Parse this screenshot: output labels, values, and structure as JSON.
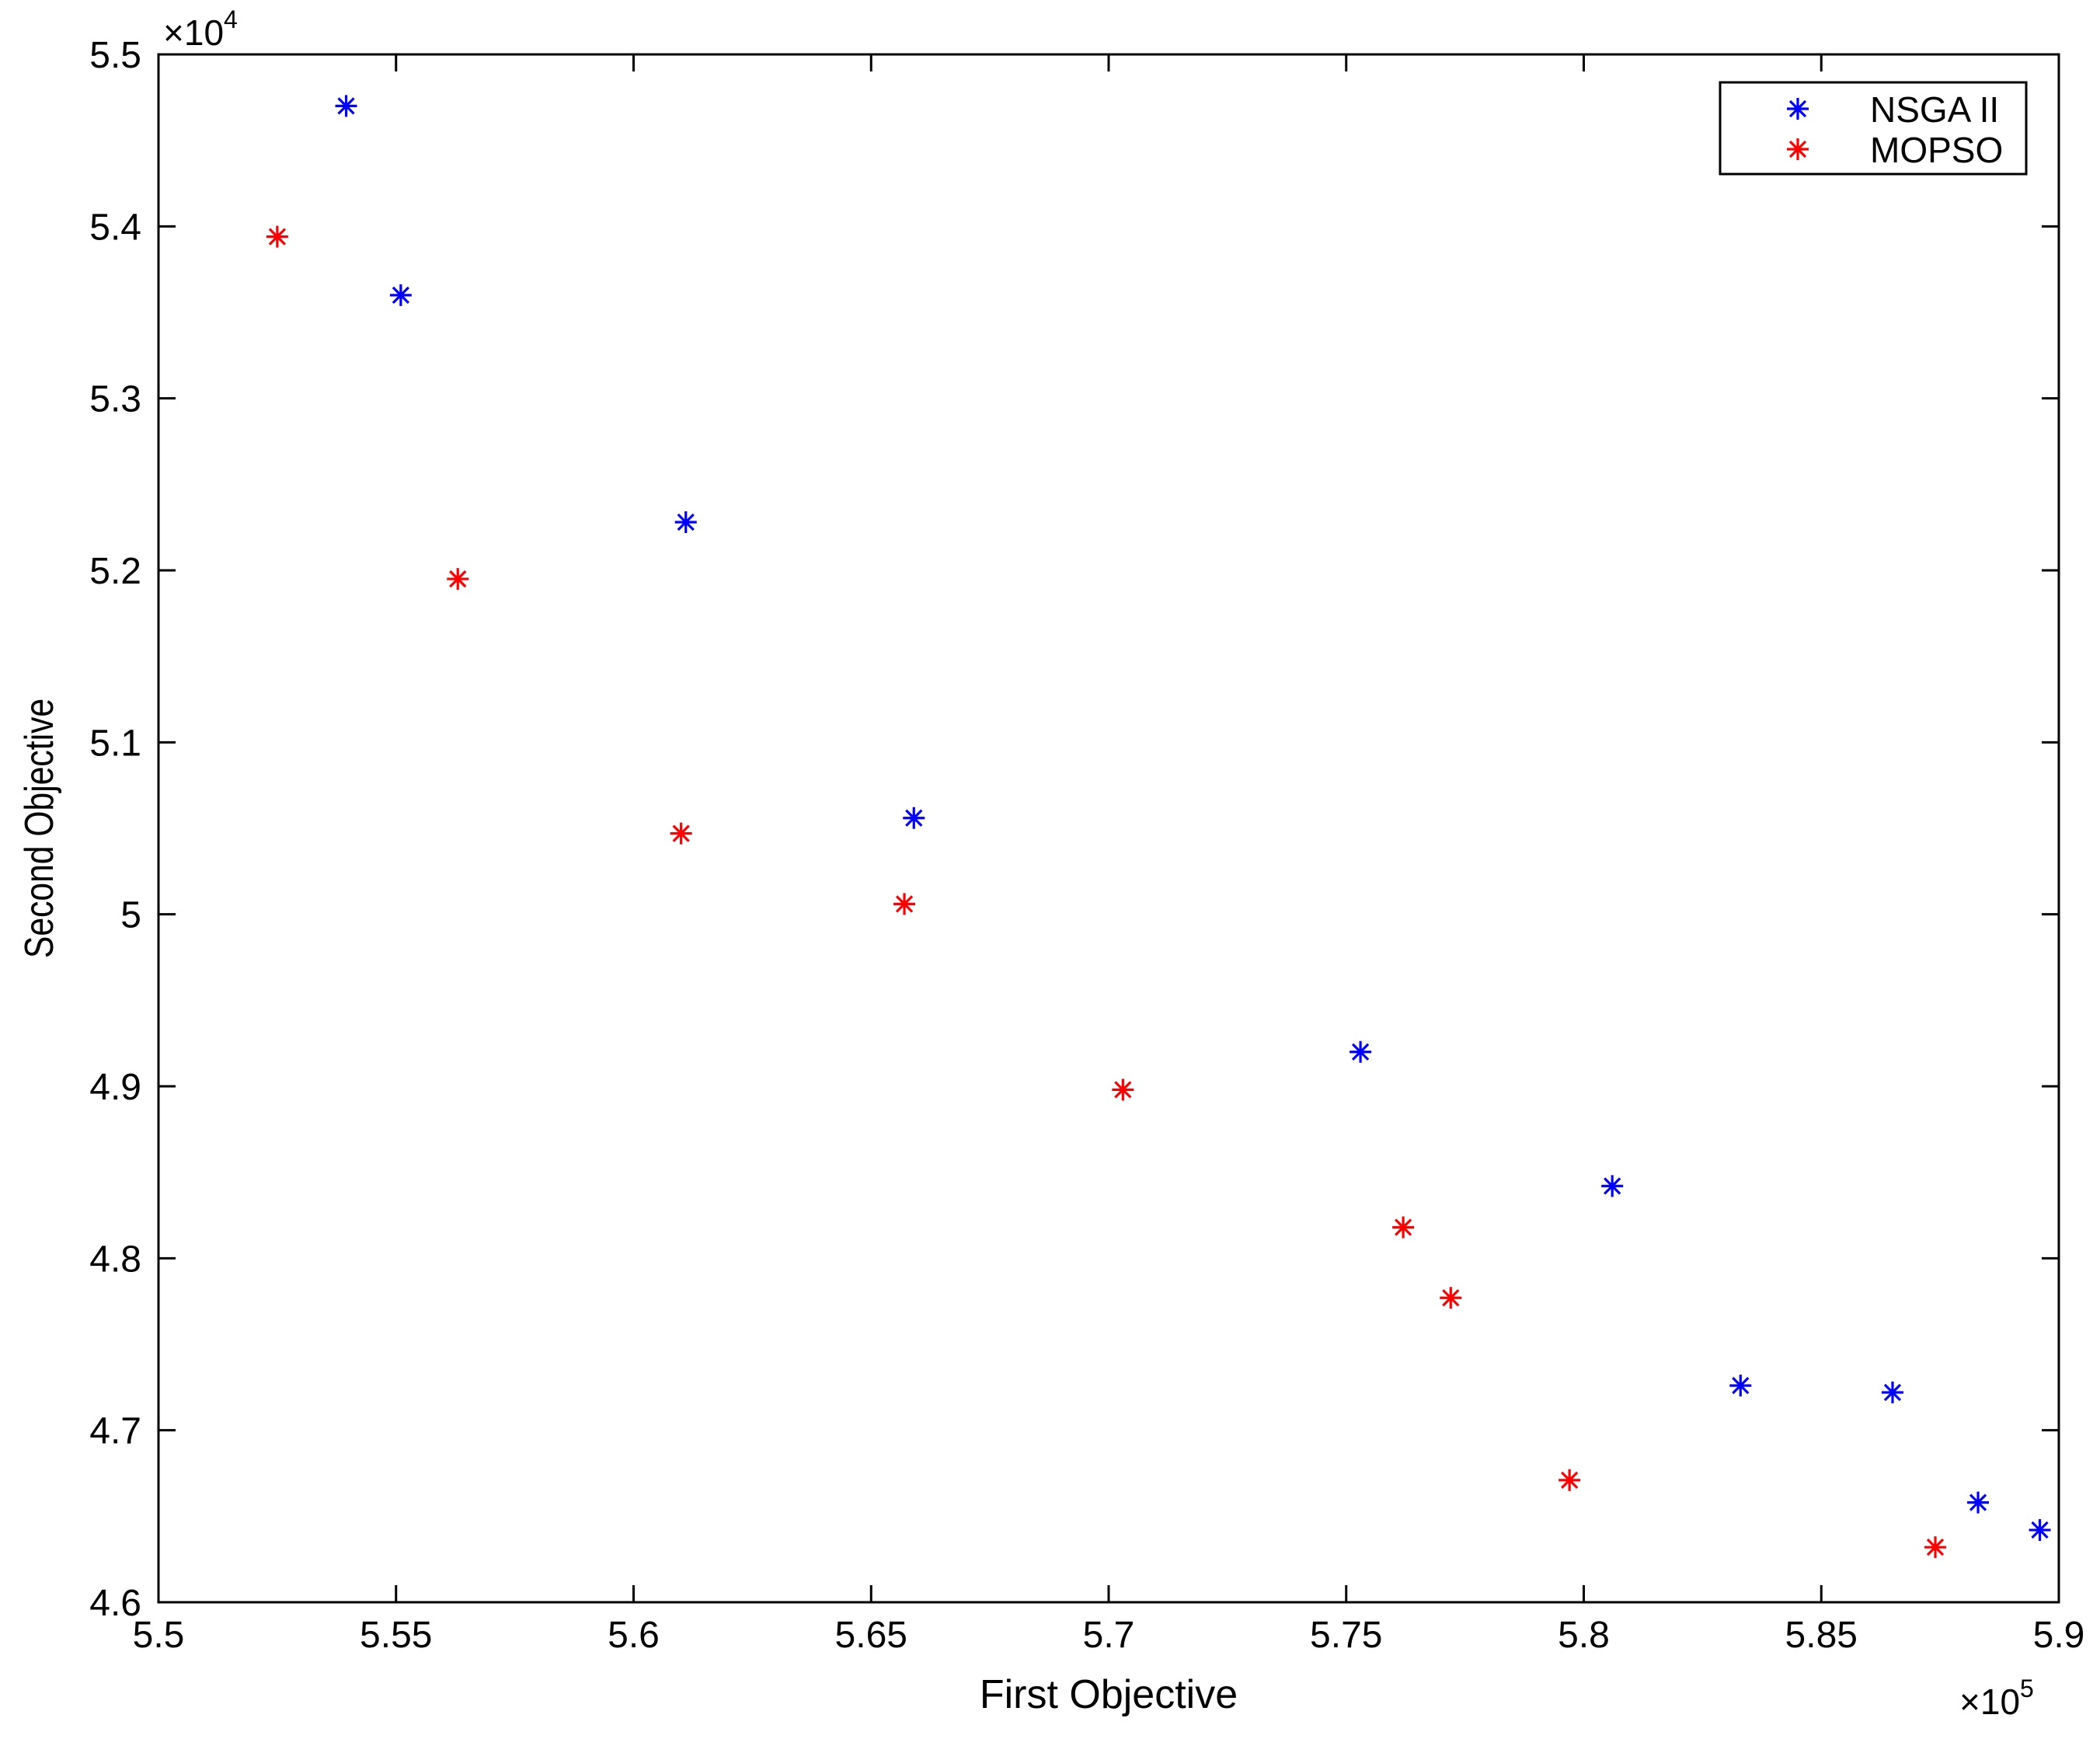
{
  "chart_data": {
    "type": "scatter",
    "title": "",
    "xlabel": "First Objective",
    "ylabel": "Second Objective",
    "xlim": [
      550000,
      590000
    ],
    "ylim": [
      46000,
      55000
    ],
    "x_exponent": {
      "times": "×",
      "base": "10",
      "power": "5"
    },
    "y_exponent": {
      "times": "×",
      "base": "10",
      "power": "4"
    },
    "x_ticks": [
      550000,
      555000,
      560000,
      565000,
      570000,
      575000,
      580000,
      585000,
      590000
    ],
    "x_tick_labels": [
      "5.5",
      "5.55",
      "5.6",
      "5.65",
      "5.7",
      "5.75",
      "5.8",
      "5.85",
      "5.9"
    ],
    "y_ticks": [
      46000,
      47000,
      48000,
      49000,
      50000,
      51000,
      52000,
      53000,
      54000,
      55000
    ],
    "y_tick_labels": [
      "4.6",
      "4.7",
      "4.8",
      "4.9",
      "5",
      "5.1",
      "5.2",
      "5.3",
      "5.4",
      "5.5"
    ],
    "grid": false,
    "legend_position": "top-right",
    "marker": "asterisk",
    "series": [
      {
        "name": "NSGA II",
        "color": "#0000ff",
        "x": [
          553950,
          555100,
          561100,
          565900,
          575300,
          580600,
          583300,
          586500,
          588300,
          589600
        ],
        "y": [
          54700,
          53600,
          52280,
          50560,
          49200,
          48420,
          47260,
          47220,
          46580,
          46420
        ]
      },
      {
        "name": "MOPSO",
        "color": "#ff0000",
        "x": [
          552500,
          556300,
          561000,
          565700,
          570300,
          576200,
          577200,
          579700,
          587400
        ],
        "y": [
          53940,
          51950,
          50470,
          50060,
          48980,
          48180,
          47770,
          46710,
          46320
        ]
      }
    ]
  }
}
